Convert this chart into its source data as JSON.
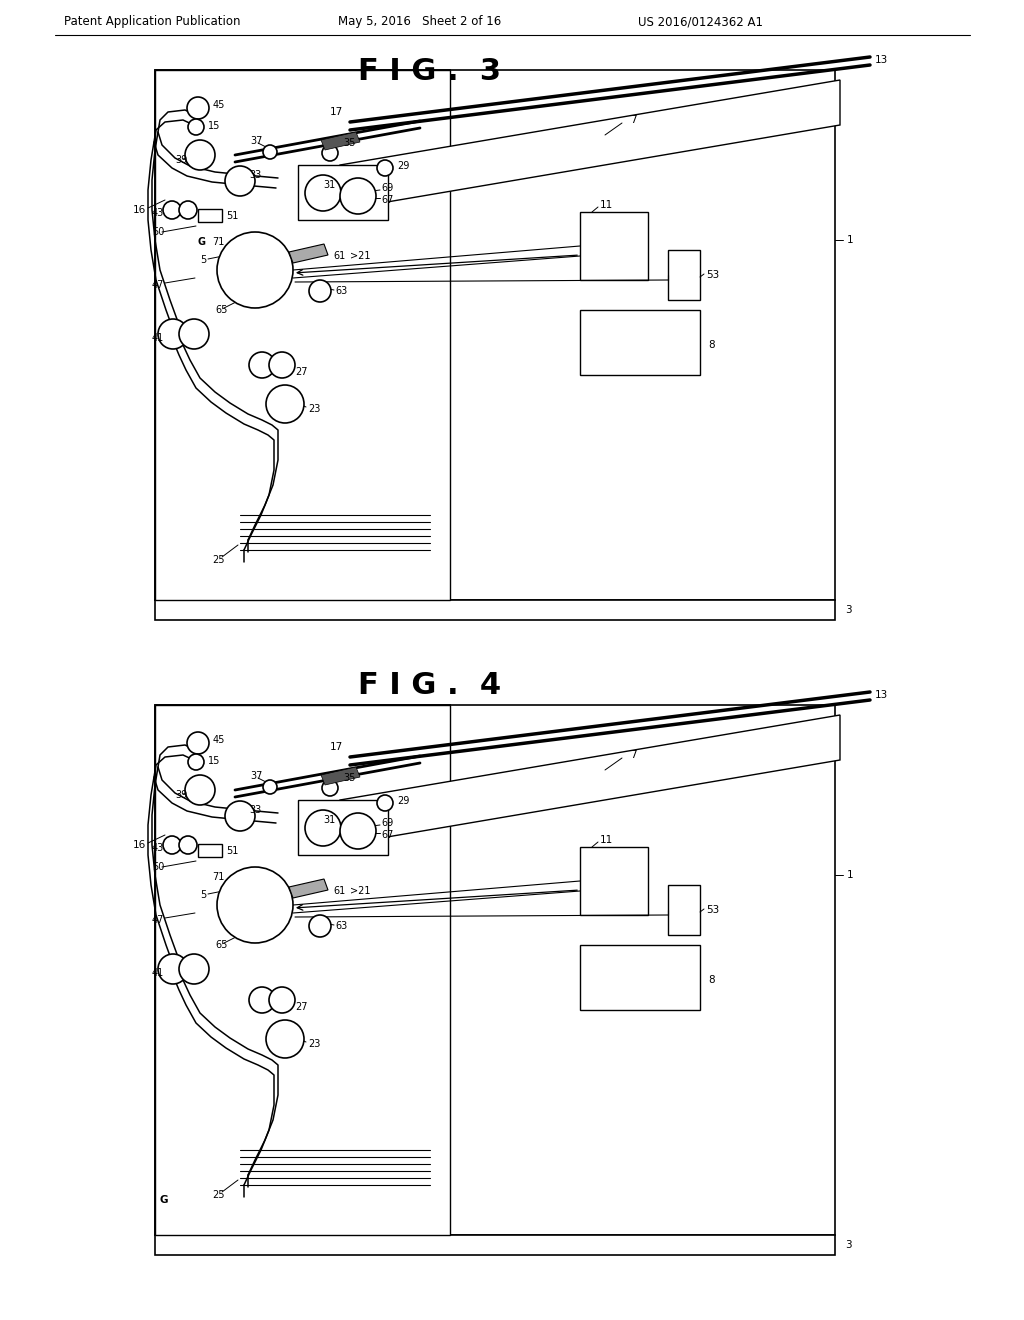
{
  "header_left": "Patent Application Publication",
  "header_mid": "May 5, 2016   Sheet 2 of 16",
  "header_right": "US 2016/0124362 A1",
  "bg_color": "#ffffff",
  "lc": "#000000"
}
